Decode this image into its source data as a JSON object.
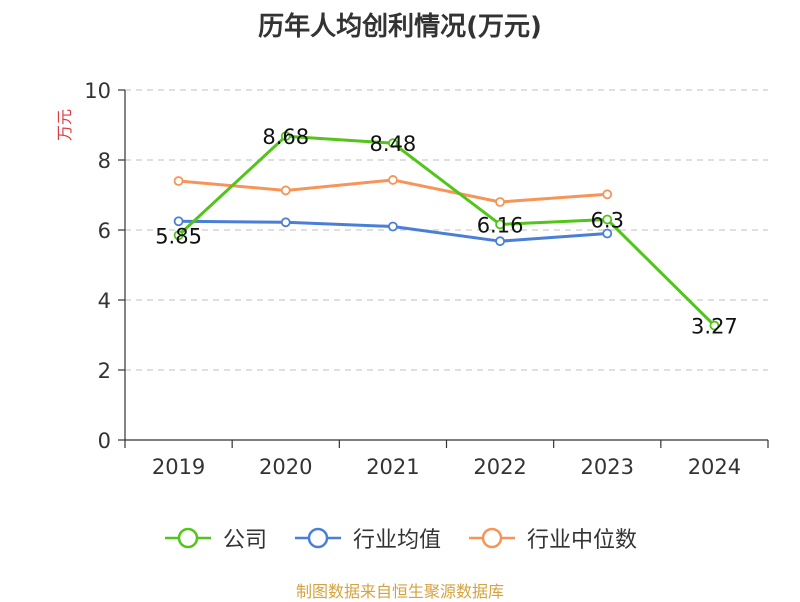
{
  "chart_data": {
    "type": "line",
    "title": "历年人均创利情况(万元)",
    "ylabel": "万元",
    "xlabel": "",
    "categories": [
      "2019",
      "2020",
      "2021",
      "2022",
      "2023",
      "2024"
    ],
    "ylim": [
      0,
      10
    ],
    "yticks": [
      "0",
      "2",
      "4",
      "6",
      "8",
      "10"
    ],
    "grid": true,
    "legend_position": "bottom",
    "series": [
      {
        "name": "公司",
        "color": "#52c41a",
        "values": [
          5.85,
          8.68,
          8.48,
          6.16,
          6.3,
          3.27
        ],
        "labels": [
          "5.85",
          "8.68",
          "8.48",
          "6.16",
          "6.3",
          "3.27"
        ]
      },
      {
        "name": "行业均值",
        "color": "#4a7fd8",
        "values": [
          6.25,
          6.22,
          6.1,
          5.68,
          5.9,
          null
        ]
      },
      {
        "name": "行业中位数",
        "color": "#f79457",
        "values": [
          7.4,
          7.13,
          7.43,
          6.8,
          7.02,
          null
        ]
      }
    ]
  },
  "source_text": "制图数据来自恒生聚源数据库"
}
